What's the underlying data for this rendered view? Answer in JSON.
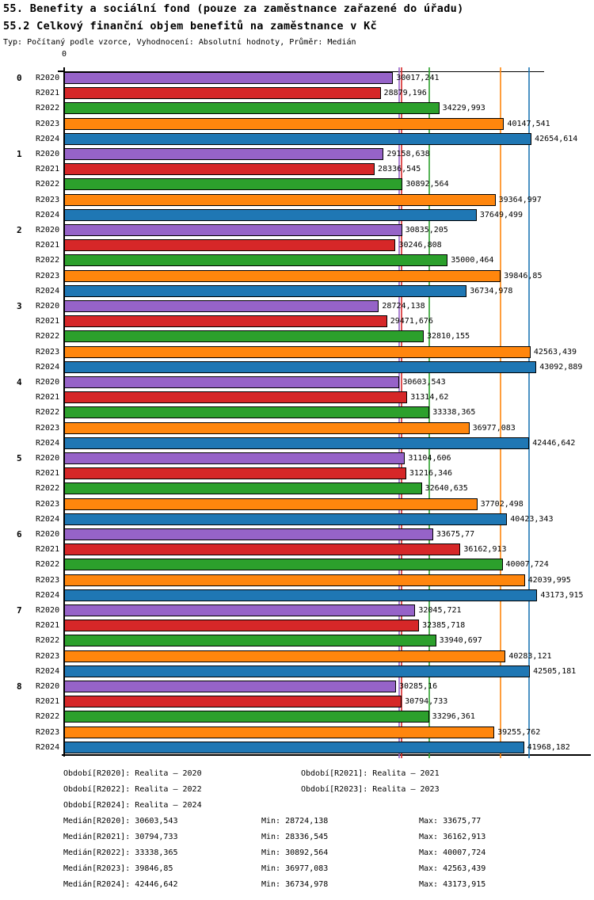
{
  "header": {
    "title1": "55. Benefity a sociální fond (pouze za zaměstnance zařazené do úřadu)",
    "title2": "55.2 Celkový finanční objem benefitů na zaměstnance v Kč",
    "meta": "Typ: Počítaný podle vzorce, Vyhodnocení: Absolutní hodnoty, Průměr: Medián"
  },
  "axis": {
    "origin_label": "0"
  },
  "chart_data": {
    "type": "bar",
    "orientation": "horizontal",
    "title": "55.2 Celkový finanční objem benefitů na zaměstnance v Kč",
    "categories": [
      "0",
      "1",
      "2",
      "3",
      "4",
      "5",
      "6",
      "7",
      "8"
    ],
    "xlim": [
      0,
      43800
    ],
    "grid": false,
    "legend_position": "bottom",
    "series": [
      {
        "name": "R2020",
        "color": "#9663C8",
        "values": [
          30017.241,
          29158.638,
          30835.205,
          28724.138,
          30603.543,
          31104.606,
          33675.77,
          32045.721,
          30285.16
        ]
      },
      {
        "name": "R2021",
        "color": "#D62728",
        "values": [
          28879.196,
          28336.545,
          30246.808,
          29471.676,
          31314.62,
          31216.346,
          36162.913,
          32385.718,
          30794.733
        ]
      },
      {
        "name": "R2022",
        "color": "#2CA02C",
        "values": [
          34229.993,
          30892.564,
          35000.464,
          32810.155,
          33338.365,
          32640.635,
          40007.724,
          33940.697,
          33296.361
        ]
      },
      {
        "name": "R2023",
        "color": "#FF860D",
        "values": [
          40147.541,
          39364.997,
          39846.85,
          42563.439,
          36977.083,
          37702.498,
          42039.995,
          40283.121,
          39255.762
        ]
      },
      {
        "name": "R2024",
        "color": "#1F77B4",
        "values": [
          42654.614,
          37649.499,
          36734.978,
          43092.889,
          42446.642,
          40423.343,
          43173.915,
          42505.181,
          41968.182
        ]
      }
    ],
    "median_lines": [
      {
        "name": "R2020",
        "value": 30603.543,
        "color": "#9663C8"
      },
      {
        "name": "R2021",
        "value": 30794.733,
        "color": "#D62728"
      },
      {
        "name": "R2022",
        "value": 33338.365,
        "color": "#2CA02C"
      },
      {
        "name": "R2023",
        "value": 39846.85,
        "color": "#FF860D"
      },
      {
        "name": "R2024",
        "value": 42446.642,
        "color": "#1F77B4"
      }
    ]
  },
  "legend": {
    "period_rows": [
      [
        "Období[R2020]: Realita – 2020",
        "Období[R2021]: Realita – 2021"
      ],
      [
        "Období[R2022]: Realita – 2022",
        "Období[R2023]: Realita – 2023"
      ],
      [
        "Období[R2024]: Realita – 2024"
      ]
    ],
    "stat_rows": [
      [
        "Medián[R2020]: 30603,543",
        "Min: 28724,138",
        "Max: 33675,77"
      ],
      [
        "Medián[R2021]: 30794,733",
        "Min: 28336,545",
        "Max: 36162,913"
      ],
      [
        "Medián[R2022]: 33338,365",
        "Min: 30892,564",
        "Max: 40007,724"
      ],
      [
        "Medián[R2023]: 39846,85",
        "Min: 36977,083",
        "Max: 42563,439"
      ],
      [
        "Medián[R2024]: 42446,642",
        "Min: 36734,978",
        "Max: 43173,915"
      ]
    ]
  }
}
